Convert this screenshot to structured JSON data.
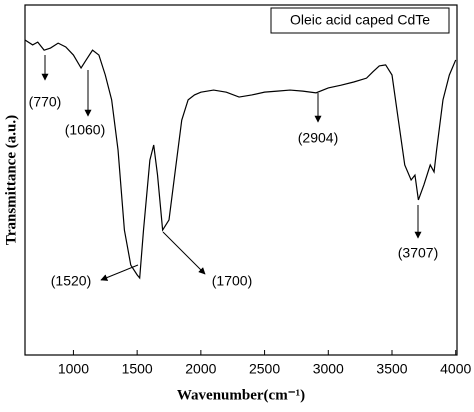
{
  "chart_data": {
    "type": "line",
    "legend_text": "Oleic acid caped CdTe",
    "xlabel": "Wavenumber(cm⁻¹)",
    "ylabel": "Transmittance (a.u.)",
    "xlim": [
      620,
      4010
    ],
    "ylim": [
      0,
      100
    ],
    "xticks": [
      1000,
      1500,
      2000,
      2500,
      3000,
      3500,
      4000
    ],
    "color": "#000000",
    "x": [
      620,
      680,
      720,
      770,
      820,
      880,
      940,
      1000,
      1060,
      1100,
      1150,
      1200,
      1250,
      1300,
      1350,
      1400,
      1450,
      1500,
      1520,
      1550,
      1600,
      1630,
      1660,
      1700,
      1750,
      1800,
      1850,
      1900,
      1950,
      2000,
      2100,
      2200,
      2300,
      2400,
      2500,
      2600,
      2700,
      2800,
      2904,
      3000,
      3100,
      3200,
      3300,
      3350,
      3400,
      3450,
      3500,
      3550,
      3600,
      3650,
      3680,
      3707,
      3750,
      3800,
      3830,
      3850,
      3900,
      3950,
      4000
    ],
    "values": [
      90.0,
      88.6,
      89.4,
      87.1,
      87.7,
      89.1,
      88.0,
      85.7,
      82.0,
      84.3,
      87.1,
      85.7,
      80.0,
      72.9,
      58.6,
      35.7,
      25.7,
      22.9,
      22.0,
      35.7,
      55.7,
      60.0,
      51.4,
      35.7,
      38.6,
      52.9,
      67.1,
      72.9,
      74.3,
      75.1,
      75.7,
      75.1,
      73.7,
      74.3,
      75.1,
      75.4,
      75.7,
      75.4,
      74.9,
      76.3,
      77.1,
      78.0,
      79.1,
      80.9,
      82.6,
      82.9,
      80.0,
      67.1,
      54.3,
      50.0,
      51.4,
      44.3,
      48.6,
      54.3,
      52.3,
      58.6,
      72.9,
      80.0,
      84.3
    ],
    "annotations": [
      {
        "text": "(770)",
        "x": 770
      },
      {
        "text": "(1060)",
        "x": 1060
      },
      {
        "text": "(1520)",
        "x": 1520
      },
      {
        "text": "(1700)",
        "x": 1700
      },
      {
        "text": "(2904)",
        "x": 2904
      },
      {
        "text": "(3707)",
        "x": 3707
      }
    ]
  }
}
